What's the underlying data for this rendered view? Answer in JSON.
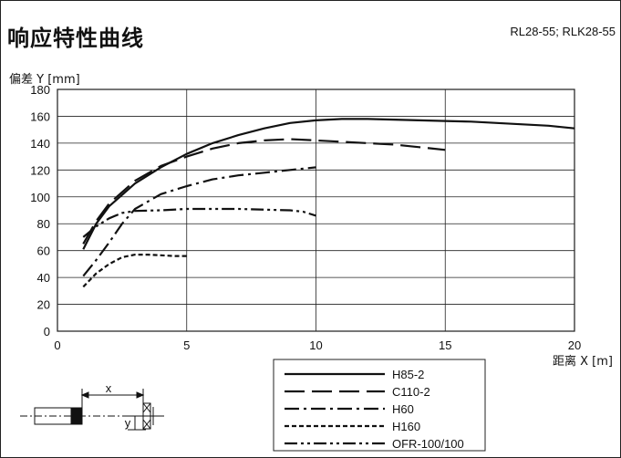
{
  "header": {
    "title": "响应特性曲线",
    "models": "RL28-55; RLK28-55"
  },
  "chart_data": {
    "type": "line",
    "title": "响应特性曲线",
    "xlabel": "距离 X [m]",
    "ylabel": "偏差 Y [mm]",
    "xlim": [
      0,
      20
    ],
    "ylim": [
      0,
      180
    ],
    "xticks": [
      0,
      5,
      10,
      15,
      20
    ],
    "yticks": [
      0,
      20,
      40,
      60,
      80,
      100,
      120,
      140,
      160,
      180
    ],
    "grid": true,
    "legend_position": "bottom-center",
    "series": [
      {
        "name": "H85-2",
        "style": "solid",
        "x": [
          1,
          1.5,
          2,
          3,
          4,
          5,
          6,
          7,
          8,
          9,
          10,
          11,
          12,
          13,
          14,
          15,
          16,
          17,
          18,
          19,
          20
        ],
        "y": [
          61,
          80,
          93,
          110,
          122,
          132,
          140,
          146,
          151,
          155,
          157,
          158,
          158,
          157.5,
          157,
          156.5,
          156,
          155,
          154,
          153,
          151
        ]
      },
      {
        "name": "C110-2",
        "style": "dashed",
        "x": [
          1,
          1.5,
          2,
          3,
          4,
          5,
          6,
          7,
          8,
          9,
          10,
          11,
          12,
          13,
          14,
          15
        ],
        "y": [
          65,
          82,
          95,
          112,
          123,
          130,
          136,
          140,
          142,
          143,
          142,
          141,
          140,
          139,
          137,
          135
        ]
      },
      {
        "name": "H60",
        "style": "dash-dot",
        "x": [
          1,
          1.5,
          2,
          2.5,
          3,
          4,
          5,
          6,
          7,
          8,
          9,
          10
        ],
        "y": [
          41,
          53,
          66,
          80,
          91,
          102,
          108,
          113,
          116,
          118,
          120,
          122
        ]
      },
      {
        "name": "H160",
        "style": "dotted",
        "x": [
          1,
          1.5,
          2,
          2.5,
          3,
          3.5,
          4,
          4.5,
          5
        ],
        "y": [
          33,
          43,
          50,
          55,
          57,
          57,
          56.5,
          56,
          56
        ]
      },
      {
        "name": "OFR-100/100",
        "style": "dash-dot-dot",
        "x": [
          1,
          1.5,
          2,
          2.5,
          3,
          4,
          5,
          6,
          7,
          8,
          9,
          9.5,
          10
        ],
        "y": [
          70,
          78,
          84,
          88,
          89.5,
          90,
          91,
          91,
          91,
          90.5,
          90,
          89,
          86
        ]
      }
    ]
  },
  "diagram": {
    "x_label": "x",
    "y_label": "y"
  }
}
